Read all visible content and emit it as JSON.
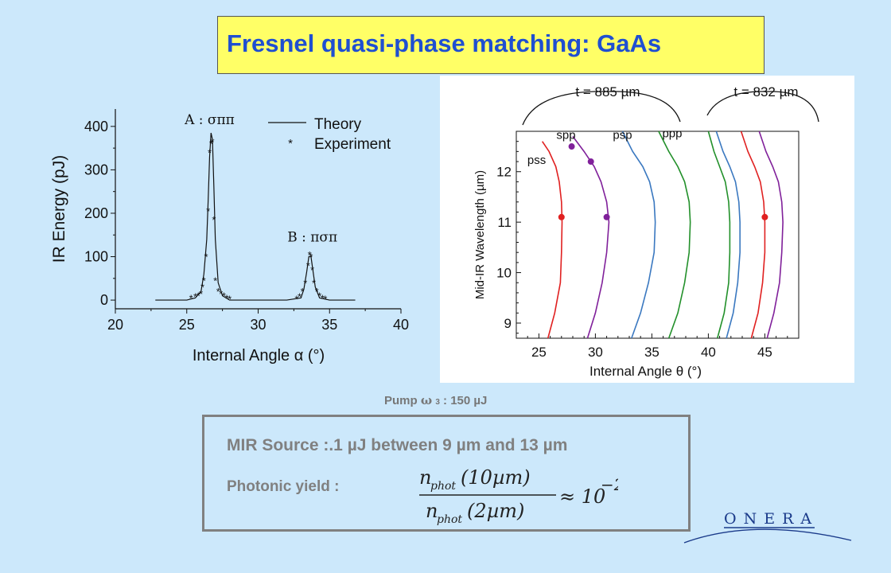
{
  "title": "Fresnel quasi-phase matching: GaAs",
  "pump_label": "Pump",
  "pump_symbol": "ω",
  "pump_sub": "3",
  "pump_value": ": 150 µJ",
  "mir_source": "MIR Source :.1 µJ between 9 µm and 13 µm",
  "photonic_yield_label": "Photonic yield :",
  "formula": {
    "num_sym": "n",
    "num_sub": "phot",
    "num_arg": "(10µm)",
    "den_sym": "n",
    "den_sub": "phot",
    "den_arg": "(2µm)",
    "rhs": "≈ 10",
    "exp": "−2"
  },
  "logo_text": "ONERA",
  "colors": {
    "background": "#cce8fb",
    "title_box": "#ffff66",
    "title_text": "#1f4fd1",
    "gray_text": "#808080",
    "red": "#e02020",
    "purple": "#80209a",
    "blue": "#3a78c0",
    "green": "#22902a"
  },
  "chart_data": [
    {
      "type": "line",
      "xlabel": "Internal Angle α (°)",
      "ylabel": "IR Energy (pJ)",
      "xlim": [
        20,
        40
      ],
      "ylim": [
        -20,
        440
      ],
      "xticks": [
        20,
        25,
        30,
        35,
        40
      ],
      "yticks": [
        0,
        100,
        200,
        300,
        400
      ],
      "legend": [
        "Theory",
        "Experiment"
      ],
      "legend_position": "top-right",
      "annotations": [
        {
          "text": "A : σππ",
          "x": 26.6,
          "y": 405
        },
        {
          "text": "B : πσπ",
          "x": 33.8,
          "y": 135
        }
      ],
      "series": [
        {
          "name": "Theory",
          "kind": "line",
          "x": [
            22.8,
            24.0,
            25.0,
            25.6,
            26.0,
            26.2,
            26.4,
            26.5,
            26.6,
            26.7,
            26.8,
            26.9,
            27.0,
            27.2,
            27.5,
            28.0,
            29.0,
            30.0,
            31.0,
            32.0,
            33.0,
            33.2,
            33.4,
            33.55,
            33.7,
            33.85,
            34.0,
            34.3,
            35.0,
            36.0,
            36.8
          ],
          "y": [
            0,
            0,
            0,
            5,
            20,
            60,
            140,
            230,
            330,
            385,
            370,
            260,
            140,
            40,
            10,
            0,
            0,
            0,
            0,
            0,
            5,
            25,
            65,
            100,
            100,
            65,
            30,
            5,
            0,
            0,
            0
          ]
        },
        {
          "name": "Experiment",
          "kind": "scatter",
          "x": [
            25.3,
            25.6,
            25.8,
            26.0,
            26.1,
            26.2,
            26.35,
            26.5,
            26.6,
            26.7,
            26.8,
            26.9,
            27.0,
            27.2,
            27.4,
            27.6,
            27.8,
            28.0,
            32.7,
            32.9,
            33.1,
            33.3,
            33.5,
            33.6,
            33.7,
            33.8,
            33.9,
            34.1,
            34.3,
            34.5,
            34.7
          ],
          "y": [
            5,
            8,
            10,
            15,
            30,
            45,
            100,
            205,
            340,
            360,
            365,
            185,
            45,
            20,
            15,
            10,
            5,
            3,
            3,
            8,
            20,
            40,
            80,
            105,
            100,
            70,
            40,
            20,
            10,
            5,
            3
          ]
        }
      ]
    },
    {
      "type": "line",
      "xlabel": "Internal Angle θ (°)",
      "ylabel": "Mid-IR Wavelength (µm)",
      "xlim": [
        23,
        48
      ],
      "ylim": [
        8.7,
        12.8
      ],
      "xticks": [
        25,
        30,
        35,
        40,
        45
      ],
      "yticks": [
        9,
        10,
        11,
        12
      ],
      "group_labels": [
        {
          "text": "t = 885 µm",
          "x": 30
        },
        {
          "text": "t = 832 µm",
          "x": 45
        }
      ],
      "curve_labels": [
        {
          "text": "pss",
          "x": 24.8,
          "y": 12.15
        },
        {
          "text": "spp",
          "x": 27.4,
          "y": 12.65
        },
        {
          "text": "psp",
          "x": 32.4,
          "y": 12.65
        },
        {
          "text": "ppp",
          "x": 36.8,
          "y": 12.68
        }
      ],
      "series": [
        {
          "color": "red",
          "x": [
            25.8,
            26.4,
            26.9,
            27.0,
            27.05,
            27.0,
            26.8,
            26.5,
            25.9,
            25.3
          ],
          "y": [
            8.7,
            9.2,
            9.8,
            10.4,
            11.0,
            11.4,
            11.8,
            12.1,
            12.4,
            12.6
          ]
        },
        {
          "color": "purple",
          "x": [
            29.3,
            30.0,
            30.6,
            31.0,
            31.2,
            31.0,
            30.5,
            29.9,
            29.0,
            28.0
          ],
          "y": [
            8.7,
            9.2,
            9.8,
            10.4,
            11.0,
            11.4,
            11.8,
            12.1,
            12.4,
            12.7
          ]
        },
        {
          "color": "blue",
          "x": [
            33.2,
            34.0,
            34.7,
            35.2,
            35.3,
            35.2,
            34.8,
            34.2,
            33.3,
            32.4
          ],
          "y": [
            8.7,
            9.2,
            9.8,
            10.4,
            11.0,
            11.4,
            11.8,
            12.1,
            12.4,
            12.8
          ]
        },
        {
          "color": "green",
          "x": [
            36.5,
            37.3,
            37.9,
            38.3,
            38.4,
            38.3,
            37.9,
            37.3,
            36.5,
            35.6
          ],
          "y": [
            8.7,
            9.2,
            9.8,
            10.4,
            11.0,
            11.4,
            11.8,
            12.1,
            12.4,
            12.8
          ]
        },
        {
          "color": "green",
          "x": [
            40.8,
            41.4,
            41.8,
            41.9,
            41.9,
            41.8,
            41.5,
            41.0,
            40.5,
            40.0
          ],
          "y": [
            8.7,
            9.2,
            9.8,
            10.4,
            11.0,
            11.4,
            11.8,
            12.1,
            12.4,
            12.8
          ]
        },
        {
          "color": "blue",
          "x": [
            41.6,
            42.2,
            42.6,
            42.8,
            42.8,
            42.7,
            42.4,
            41.9,
            41.3,
            40.7
          ],
          "y": [
            8.7,
            9.2,
            9.8,
            10.4,
            11.0,
            11.4,
            11.8,
            12.1,
            12.4,
            12.8
          ]
        },
        {
          "color": "red",
          "x": [
            43.8,
            44.4,
            44.8,
            45.0,
            45.0,
            44.9,
            44.6,
            44.1,
            43.5,
            42.9
          ],
          "y": [
            8.7,
            9.2,
            9.8,
            10.4,
            11.0,
            11.4,
            11.8,
            12.1,
            12.4,
            12.8
          ]
        },
        {
          "color": "purple",
          "x": [
            45.2,
            45.8,
            46.3,
            46.5,
            46.6,
            46.5,
            46.2,
            45.7,
            45.1,
            44.5
          ],
          "y": [
            8.7,
            9.2,
            9.8,
            10.4,
            11.0,
            11.4,
            11.8,
            12.1,
            12.4,
            12.8
          ]
        }
      ],
      "points": [
        {
          "color": "red",
          "x": 27.0,
          "y": 11.1
        },
        {
          "color": "purple",
          "x": 27.9,
          "y": 12.5
        },
        {
          "color": "purple",
          "x": 29.6,
          "y": 12.2
        },
        {
          "color": "purple",
          "x": 31.0,
          "y": 11.1
        },
        {
          "color": "red",
          "x": 45.0,
          "y": 11.1
        }
      ]
    }
  ]
}
